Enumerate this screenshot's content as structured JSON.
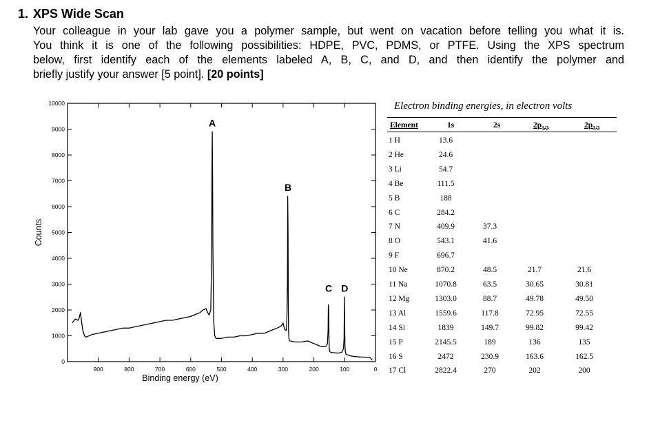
{
  "question": {
    "number": "1.",
    "title": "XPS Wide Scan",
    "lines": [
      "Your colleague in your lab gave you a polymer sample, but went on vacation before telling you what it is.",
      "You think it is one of the following possibilities: HDPE, PVC, PDMS, or PTFE. Using the XPS spectrum",
      "below, first identify each of the elements labeled A, B, C, and D, and then identify the polymer and"
    ],
    "last_line": "briefly justify your answer [5 point].",
    "points": "[20 points]"
  },
  "chart_data": {
    "type": "line",
    "xlabel": "Binding energy (eV)",
    "ylabel": "Counts",
    "xlim": [
      1000,
      0
    ],
    "ylim": [
      0,
      10000
    ],
    "x_ticks": [
      "900",
      "800",
      "700",
      "600",
      "500",
      "400",
      "300",
      "200",
      "100",
      "0"
    ],
    "y_ticks": [
      "0",
      "1000",
      "2000",
      "3000",
      "4000",
      "5000",
      "6000",
      "7000",
      "8000",
      "9000",
      "10000"
    ],
    "x_tick_values": [
      900,
      800,
      700,
      600,
      500,
      400,
      300,
      200,
      100,
      0
    ],
    "y_tick_values": [
      0,
      1000,
      2000,
      3000,
      4000,
      5000,
      6000,
      7000,
      8000,
      9000,
      10000
    ],
    "peak_labels": [
      {
        "label": "A",
        "x": 530,
        "y": 8900
      },
      {
        "label": "B",
        "x": 284,
        "y": 6400
      },
      {
        "label": "C",
        "x": 152,
        "y": 2500
      },
      {
        "label": "D",
        "x": 100,
        "y": 2500
      }
    ],
    "series": [
      {
        "x": [
          985,
          975,
          965,
          962,
          958,
          955,
          950,
          945,
          940,
          930,
          920,
          900,
          880,
          860,
          840,
          820,
          800,
          780,
          760,
          740,
          720,
          700,
          680,
          660,
          640,
          620,
          600,
          590,
          580,
          570,
          560,
          550,
          545,
          540,
          535,
          532,
          531,
          530,
          529,
          528,
          525,
          522,
          518,
          510,
          500,
          480,
          460,
          440,
          420,
          400,
          380,
          360,
          350,
          340,
          330,
          320,
          310,
          305,
          300,
          295,
          290,
          288,
          286,
          285,
          284,
          283,
          282,
          281,
          280,
          278,
          275,
          270,
          260,
          250,
          240,
          230,
          220,
          210,
          200,
          190,
          180,
          170,
          160,
          156,
          154,
          153,
          152,
          151,
          150,
          149,
          147,
          145,
          140,
          130,
          120,
          110,
          104,
          102,
          101,
          100,
          99,
          98,
          96,
          94,
          90,
          85,
          80,
          70,
          60,
          50,
          40,
          30,
          20,
          15,
          12,
          10
        ],
        "y": [
          1500,
          1650,
          1600,
          1700,
          1900,
          1600,
          1200,
          1000,
          950,
          1000,
          1050,
          1100,
          1150,
          1200,
          1250,
          1300,
          1300,
          1350,
          1400,
          1450,
          1500,
          1550,
          1600,
          1600,
          1650,
          1700,
          1750,
          1800,
          1850,
          1900,
          2000,
          2050,
          1900,
          1800,
          2000,
          4000,
          7000,
          8900,
          7500,
          4500,
          1500,
          1000,
          900,
          900,
          900,
          950,
          950,
          1000,
          1000,
          1050,
          1100,
          1100,
          1150,
          1200,
          1250,
          1300,
          1350,
          1400,
          1500,
          1250,
          1200,
          1500,
          3000,
          6400,
          5000,
          2000,
          1150,
          900,
          850,
          800,
          800,
          780,
          760,
          760,
          760,
          780,
          800,
          750,
          700,
          650,
          600,
          580,
          600,
          700,
          1200,
          2200,
          2000,
          1000,
          500,
          400,
          380,
          360,
          350,
          340,
          330,
          360,
          500,
          900,
          2500,
          1500,
          600,
          400,
          300,
          270,
          260,
          240,
          220,
          200,
          190,
          180,
          175,
          170,
          170,
          130,
          80,
          50
        ]
      }
    ]
  },
  "table": {
    "caption": "Electron binding energies, in electron volts",
    "headers": {
      "element": "Element",
      "s1": "1s",
      "s2": "2s",
      "p1_base": "2p",
      "p1_sub": "1/2",
      "p3_base": "2p",
      "p3_sub": "3/2"
    },
    "rows": [
      {
        "element": "1 H",
        "s1": "13.6",
        "s2": "",
        "p1": "",
        "p3": ""
      },
      {
        "element": "2 He",
        "s1": "24.6",
        "s2": "",
        "p1": "",
        "p3": ""
      },
      {
        "element": "3 Li",
        "s1": "54.7",
        "s2": "",
        "p1": "",
        "p3": ""
      },
      {
        "element": "4 Be",
        "s1": "111.5",
        "s2": "",
        "p1": "",
        "p3": ""
      },
      {
        "element": "5 B",
        "s1": "188",
        "s2": "",
        "p1": "",
        "p3": ""
      },
      {
        "element": "6 C",
        "s1": "284.2",
        "s2": "",
        "p1": "",
        "p3": ""
      },
      {
        "element": "7 N",
        "s1": "409.9",
        "s2": "37.3",
        "p1": "",
        "p3": ""
      },
      {
        "element": "8 O",
        "s1": "543.1",
        "s2": "41.6",
        "p1": "",
        "p3": ""
      },
      {
        "element": "9 F",
        "s1": "696.7",
        "s2": "",
        "p1": "",
        "p3": ""
      },
      {
        "element": "10 Ne",
        "s1": "870.2",
        "s2": "48.5",
        "p1": "21.7",
        "p3": "21.6"
      },
      {
        "element": "11 Na",
        "s1": "1070.8",
        "s2": "63.5",
        "p1": "30.65",
        "p3": "30.81"
      },
      {
        "element": "12 Mg",
        "s1": "1303.0",
        "s2": "88.7",
        "p1": "49.78",
        "p3": "49.50"
      },
      {
        "element": "13 Al",
        "s1": "1559.6",
        "s2": "117.8",
        "p1": "72.95",
        "p3": "72.55"
      },
      {
        "element": "14 Si",
        "s1": "1839",
        "s2": "149.7",
        "p1": "99.82",
        "p3": "99.42"
      },
      {
        "element": "15 P",
        "s1": "2145.5",
        "s2": "189",
        "p1": "136",
        "p3": "135"
      },
      {
        "element": "16 S",
        "s1": "2472",
        "s2": "230.9",
        "p1": "163.6",
        "p3": "162.5"
      },
      {
        "element": "17 Cl",
        "s1": "2822.4",
        "s2": "270",
        "p1": "202",
        "p3": "200"
      }
    ]
  }
}
